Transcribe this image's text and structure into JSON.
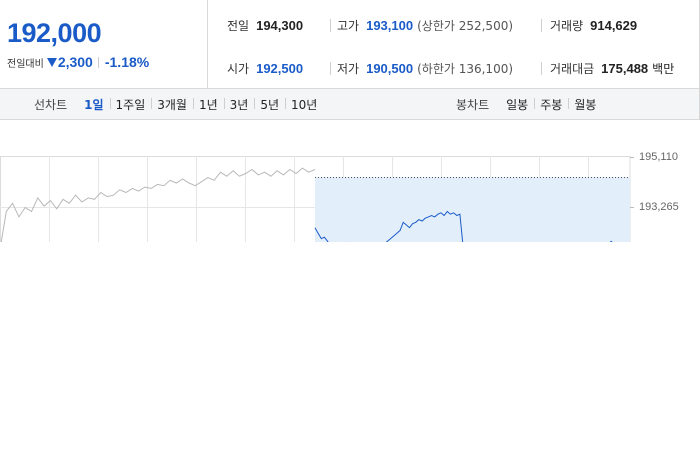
{
  "quote": {
    "current_price": "192,000",
    "change_label": "전일대비",
    "change_amount": "2,300",
    "change_rate": "-1.18%"
  },
  "stats": {
    "prev_close": {
      "label": "전일",
      "value": "194,300"
    },
    "high": {
      "label": "고가",
      "value": "193,100",
      "sub": "(상한가 252,500)"
    },
    "volume": {
      "label": "거래량",
      "value": "914,629"
    },
    "open": {
      "label": "시가",
      "value": "192,500"
    },
    "low": {
      "label": "저가",
      "value": "190,500",
      "sub": "(하한가 136,100)"
    },
    "trade_amount": {
      "label": "거래대금",
      "value": "175,488",
      "unit": "백만"
    }
  },
  "period_bar": {
    "line_title": "선차트",
    "line_periods": [
      "1일",
      "1주일",
      "3개월",
      "1년",
      "3년",
      "5년",
      "10년"
    ],
    "active_line_period": "1일",
    "candle_title": "봉차트",
    "candle_periods": [
      "일봉",
      "주봉",
      "월봉"
    ]
  },
  "colors": {
    "accent": "#1a5bc8",
    "prev_line": "#b8b8b8",
    "today_fill": "#e3eefb"
  },
  "chart_data": {
    "type": "line",
    "ytick_labels": [
      "195,110",
      "193,265"
    ],
    "ylim": [
      191500,
      195600
    ],
    "grid": true,
    "series": [
      {
        "x": [
          0,
          2,
          4,
          6,
          8,
          10,
          12,
          14,
          16,
          18,
          20,
          22,
          24,
          26,
          28,
          30,
          32,
          34,
          36,
          38,
          40,
          42,
          44,
          46,
          48,
          50,
          52,
          54,
          56,
          58,
          60,
          62,
          64,
          66,
          68,
          70,
          72,
          74,
          76,
          78,
          80,
          82,
          84,
          86,
          88,
          90,
          92,
          94,
          96,
          98,
          100
        ],
        "y": [
          191700,
          193100,
          193400,
          192900,
          193250,
          193100,
          193600,
          193300,
          193500,
          193200,
          193550,
          193400,
          193700,
          193450,
          193600,
          193550,
          193800,
          193650,
          193700,
          193900,
          193800,
          193950,
          193850,
          194000,
          193950,
          194100,
          194050,
          194250,
          194150,
          194300,
          194150,
          194050,
          194200,
          194350,
          194250,
          194550,
          194400,
          194600,
          194400,
          194500,
          194650,
          194450,
          194550,
          194400,
          194600,
          194450,
          194650,
          194500,
          194700,
          194550,
          194650
        ]
      },
      {
        "x": [
          100,
          101,
          102,
          103,
          104,
          105,
          106,
          107,
          108,
          109,
          110,
          111,
          112,
          113,
          114,
          115,
          116,
          117,
          118,
          119,
          120,
          121,
          122,
          123,
          124,
          125,
          126,
          127,
          128,
          129,
          130,
          131,
          132,
          133,
          134,
          135,
          136,
          137,
          138,
          139,
          140,
          141,
          142,
          143,
          144,
          145,
          146,
          147,
          148,
          149,
          150,
          151,
          152,
          153,
          154,
          155,
          156,
          157,
          158,
          159,
          160,
          161,
          162,
          163,
          164,
          165,
          166,
          167,
          168,
          169,
          170,
          171,
          172,
          173,
          174,
          175,
          176,
          177,
          178,
          179,
          180,
          181,
          182,
          183,
          184,
          185,
          186,
          187,
          188,
          189,
          190,
          191,
          192,
          193,
          194,
          195,
          196,
          197,
          198,
          199,
          200
        ],
        "y": [
          192500,
          192300,
          192100,
          192150,
          192000,
          191800,
          191750,
          191900,
          191850,
          191700,
          191950,
          191800,
          191900,
          191750,
          191850,
          191800,
          191900,
          191700,
          191800,
          191750,
          191850,
          191800,
          191900,
          192000,
          192100,
          192200,
          192300,
          192400,
          192700,
          192600,
          192500,
          192650,
          192700,
          192800,
          192750,
          192850,
          192900,
          192950,
          192900,
          193000,
          193050,
          192950,
          193100,
          193000,
          193050,
          192950,
          193000,
          191800,
          191900,
          191850,
          191900,
          191950,
          191900,
          191850,
          191800,
          191750,
          191800,
          191850,
          191800,
          191700,
          191850,
          191800,
          191900,
          191850,
          191800,
          191750,
          191800,
          191850,
          191800,
          191750,
          191850,
          191900,
          191800,
          191850,
          191750,
          191800,
          191850,
          191900,
          191850,
          191800,
          191750,
          191850,
          191800,
          191900,
          191850,
          191800,
          191750,
          191850,
          191800,
          191900,
          191800,
          191900,
          191950,
          191850,
          192000,
          191900,
          191850,
          191800,
          191900,
          191850,
          191800
        ]
      }
    ]
  }
}
